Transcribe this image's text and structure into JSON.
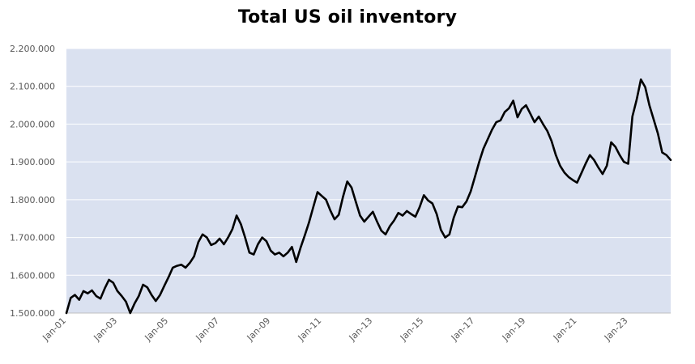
{
  "chart_data": {
    "type": "line",
    "title": "Total US oil inventory",
    "xlabel": "",
    "ylabel": "",
    "ylim": [
      1500000,
      2200000
    ],
    "xlim": [
      "2001-01",
      "2024-09"
    ],
    "y_ticks": [
      "1.500.000",
      "1.600.000",
      "1.700.000",
      "1.800.000",
      "1.900.000",
      "2.000.000",
      "2.100.000",
      "2.200.000"
    ],
    "x_ticks": [
      "Jan-01",
      "Jan-03",
      "Jan-05",
      "Jan-07",
      "Jan-09",
      "Jan-11",
      "Jan-13",
      "Jan-15",
      "Jan-17",
      "Jan-19",
      "Jan-21",
      "Jan-23"
    ],
    "grid": true,
    "plot_background": "#dae1f0",
    "gridline_color": "#ffffff",
    "line_color": "#000000",
    "series": [
      {
        "points": [
          [
            "2001-01",
            1500000
          ],
          [
            "2001-03",
            1540000
          ],
          [
            "2001-05",
            1548000
          ],
          [
            "2001-07",
            1535000
          ],
          [
            "2001-09",
            1558000
          ],
          [
            "2001-11",
            1552000
          ],
          [
            "2002-01",
            1560000
          ],
          [
            "2002-03",
            1545000
          ],
          [
            "2002-05",
            1538000
          ],
          [
            "2002-07",
            1565000
          ],
          [
            "2002-09",
            1588000
          ],
          [
            "2002-11",
            1580000
          ],
          [
            "2003-01",
            1558000
          ],
          [
            "2003-03",
            1545000
          ],
          [
            "2003-05",
            1530000
          ],
          [
            "2003-07",
            1500000
          ],
          [
            "2003-09",
            1525000
          ],
          [
            "2003-11",
            1545000
          ],
          [
            "2004-01",
            1575000
          ],
          [
            "2004-03",
            1568000
          ],
          [
            "2004-05",
            1548000
          ],
          [
            "2004-07",
            1532000
          ],
          [
            "2004-09",
            1548000
          ],
          [
            "2004-11",
            1572000
          ],
          [
            "2005-01",
            1595000
          ],
          [
            "2005-03",
            1620000
          ],
          [
            "2005-05",
            1625000
          ],
          [
            "2005-07",
            1628000
          ],
          [
            "2005-09",
            1620000
          ],
          [
            "2005-11",
            1633000
          ],
          [
            "2006-01",
            1650000
          ],
          [
            "2006-03",
            1688000
          ],
          [
            "2006-05",
            1708000
          ],
          [
            "2006-07",
            1700000
          ],
          [
            "2006-09",
            1680000
          ],
          [
            "2006-11",
            1685000
          ],
          [
            "2007-01",
            1697000
          ],
          [
            "2007-03",
            1682000
          ],
          [
            "2007-05",
            1700000
          ],
          [
            "2007-07",
            1722000
          ],
          [
            "2007-09",
            1758000
          ],
          [
            "2007-11",
            1735000
          ],
          [
            "2008-01",
            1700000
          ],
          [
            "2008-03",
            1660000
          ],
          [
            "2008-05",
            1655000
          ],
          [
            "2008-07",
            1682000
          ],
          [
            "2008-09",
            1700000
          ],
          [
            "2008-11",
            1690000
          ],
          [
            "2009-01",
            1665000
          ],
          [
            "2009-03",
            1655000
          ],
          [
            "2009-05",
            1660000
          ],
          [
            "2009-07",
            1650000
          ],
          [
            "2009-09",
            1660000
          ],
          [
            "2009-11",
            1675000
          ],
          [
            "2010-01",
            1635000
          ],
          [
            "2010-03",
            1672000
          ],
          [
            "2010-05",
            1705000
          ],
          [
            "2010-07",
            1740000
          ],
          [
            "2010-09",
            1780000
          ],
          [
            "2010-11",
            1820000
          ],
          [
            "2011-01",
            1810000
          ],
          [
            "2011-03",
            1800000
          ],
          [
            "2011-05",
            1772000
          ],
          [
            "2011-07",
            1748000
          ],
          [
            "2011-09",
            1760000
          ],
          [
            "2011-11",
            1808000
          ],
          [
            "2012-01",
            1848000
          ],
          [
            "2012-03",
            1832000
          ],
          [
            "2012-05",
            1795000
          ],
          [
            "2012-07",
            1758000
          ],
          [
            "2012-09",
            1742000
          ],
          [
            "2012-11",
            1755000
          ],
          [
            "2013-01",
            1768000
          ],
          [
            "2013-03",
            1742000
          ],
          [
            "2013-05",
            1718000
          ],
          [
            "2013-07",
            1708000
          ],
          [
            "2013-09",
            1730000
          ],
          [
            "2013-11",
            1745000
          ],
          [
            "2014-01",
            1765000
          ],
          [
            "2014-03",
            1758000
          ],
          [
            "2014-05",
            1770000
          ],
          [
            "2014-07",
            1762000
          ],
          [
            "2014-09",
            1755000
          ],
          [
            "2014-11",
            1780000
          ],
          [
            "2015-01",
            1812000
          ],
          [
            "2015-03",
            1798000
          ],
          [
            "2015-05",
            1790000
          ],
          [
            "2015-07",
            1762000
          ],
          [
            "2015-09",
            1720000
          ],
          [
            "2015-11",
            1700000
          ],
          [
            "2016-01",
            1708000
          ],
          [
            "2016-03",
            1752000
          ],
          [
            "2016-05",
            1782000
          ],
          [
            "2016-07",
            1780000
          ],
          [
            "2016-09",
            1795000
          ],
          [
            "2016-11",
            1822000
          ],
          [
            "2017-01",
            1860000
          ],
          [
            "2017-03",
            1900000
          ],
          [
            "2017-05",
            1935000
          ],
          [
            "2017-07",
            1960000
          ],
          [
            "2017-09",
            1985000
          ],
          [
            "2017-11",
            2005000
          ],
          [
            "2018-01",
            2010000
          ],
          [
            "2018-03",
            2032000
          ],
          [
            "2018-05",
            2042000
          ],
          [
            "2018-07",
            2062000
          ],
          [
            "2018-09",
            2018000
          ],
          [
            "2018-11",
            2040000
          ],
          [
            "2019-01",
            2050000
          ],
          [
            "2019-03",
            2028000
          ],
          [
            "2019-05",
            2005000
          ],
          [
            "2019-07",
            2020000
          ],
          [
            "2019-09",
            2000000
          ],
          [
            "2019-11",
            1982000
          ],
          [
            "2020-01",
            1955000
          ],
          [
            "2020-03",
            1918000
          ],
          [
            "2020-05",
            1890000
          ],
          [
            "2020-07",
            1872000
          ],
          [
            "2020-09",
            1860000
          ],
          [
            "2020-11",
            1852000
          ],
          [
            "2021-01",
            1845000
          ],
          [
            "2021-03",
            1870000
          ],
          [
            "2021-05",
            1895000
          ],
          [
            "2021-07",
            1918000
          ],
          [
            "2021-09",
            1905000
          ],
          [
            "2021-11",
            1885000
          ],
          [
            "2022-01",
            1868000
          ],
          [
            "2022-03",
            1890000
          ],
          [
            "2022-05",
            1952000
          ],
          [
            "2022-07",
            1940000
          ],
          [
            "2022-09",
            1918000
          ],
          [
            "2022-11",
            1900000
          ],
          [
            "2023-01",
            1895000
          ],
          [
            "2023-03",
            2020000
          ],
          [
            "2023-05",
            2065000
          ],
          [
            "2023-07",
            2118000
          ],
          [
            "2023-09",
            2098000
          ],
          [
            "2023-11",
            2050000
          ],
          [
            "2024-01",
            2012000
          ],
          [
            "2024-03",
            1975000
          ],
          [
            "2024-05",
            1925000
          ],
          [
            "2024-07",
            1918000
          ],
          [
            "2024-09",
            1905000
          ]
        ]
      }
    ]
  }
}
